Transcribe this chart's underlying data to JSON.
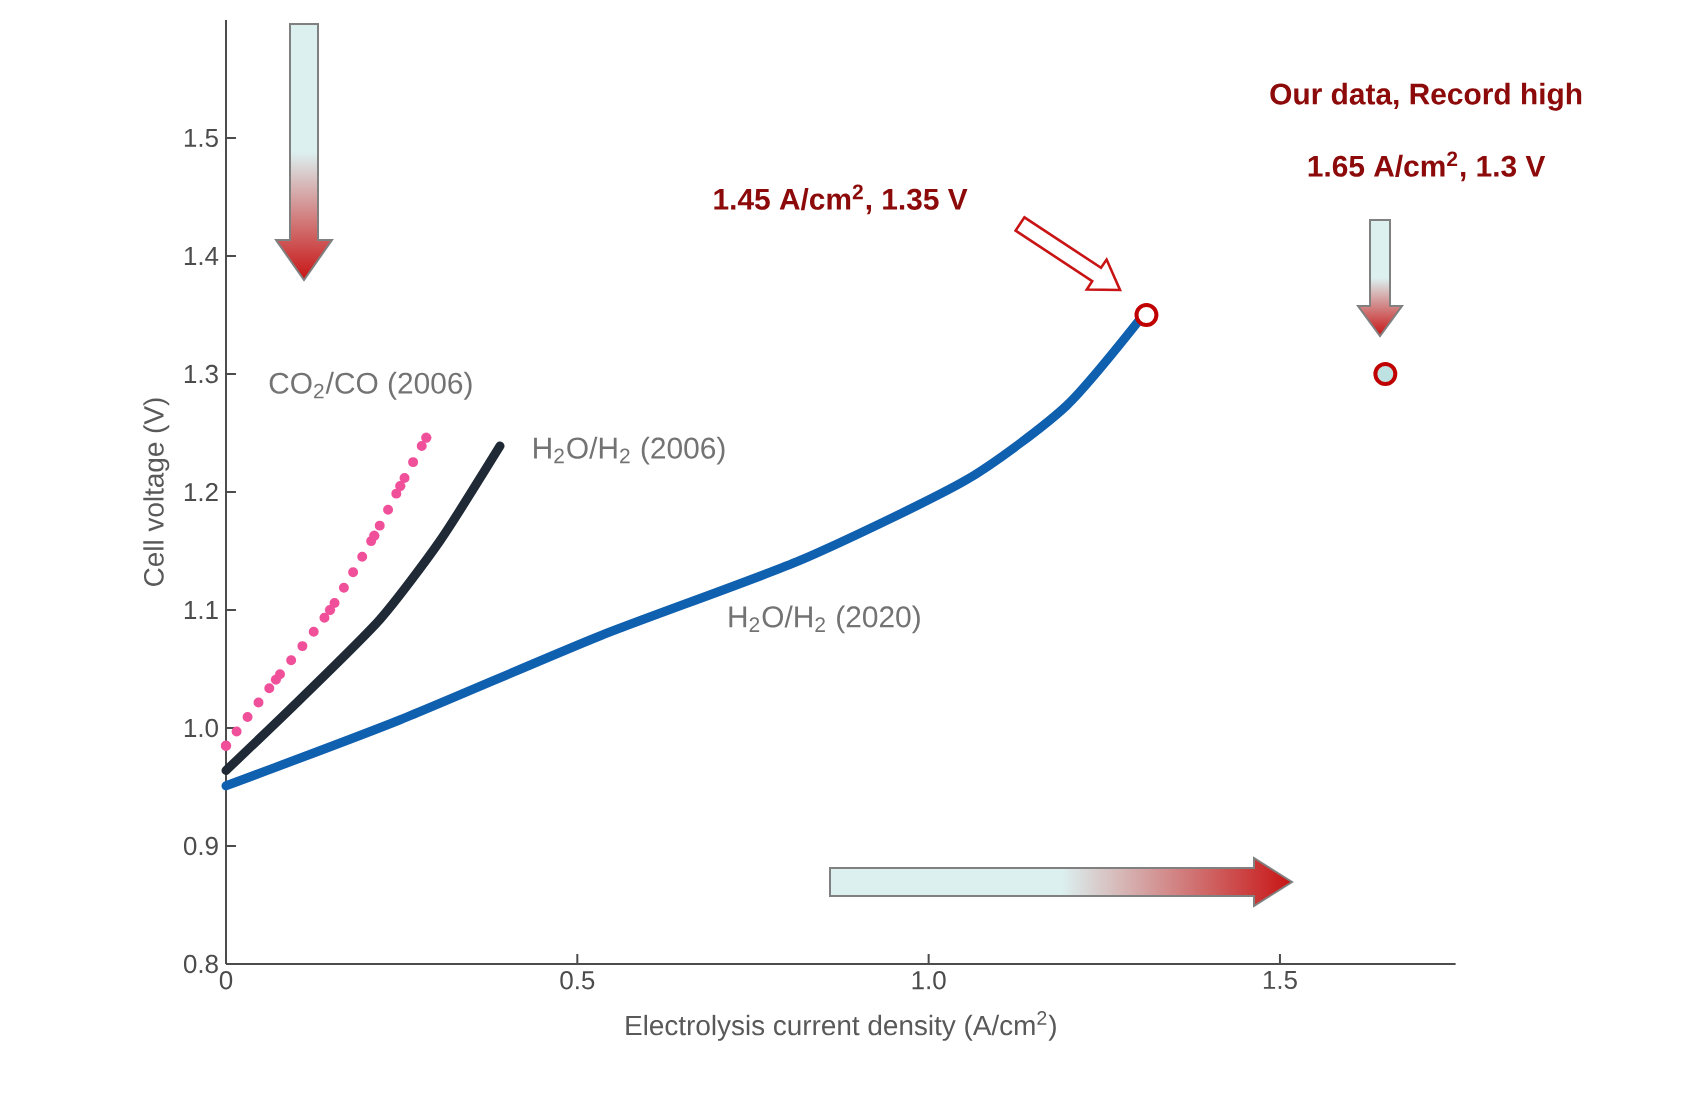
{
  "chart_data": {
    "type": "line",
    "xlabel": "Electrolysis current density (A/cm$^{2}$)",
    "ylabel": "Cell voltage (V)",
    "xlim": [
      0,
      1.75
    ],
    "ylim": [
      0.8,
      1.6
    ],
    "xticks": [
      0,
      0.5,
      {
        "value": 1.0,
        "label": "1.0"
      },
      1.5
    ],
    "yticks": [
      0.8,
      0.9,
      {
        "value": 1.0,
        "label": "1.0"
      },
      1.1,
      1.2,
      1.3,
      1.4,
      1.5
    ],
    "series": [
      {
        "name": "CO$_{2}$/CO (2006)",
        "color": "#f0509a",
        "line_style": "dotted",
        "marker": "circle",
        "x": [
          0,
          0.071,
          0.148,
          0.211,
          0.248,
          0.285
        ],
        "values": [
          0.985,
          1.041,
          1.1,
          1.163,
          1.205,
          1.246
        ]
      },
      {
        "name": "H$_{2}$O/H$_{2}$ (2006)",
        "color": "#1f2a36",
        "line_style": "solid",
        "x": [
          0,
          0.105,
          0.219,
          0.305,
          0.39
        ],
        "values": [
          0.964,
          1.024,
          1.092,
          1.159,
          1.239
        ]
      },
      {
        "name": "H$_{2}$O/H$_{2}$ (2020)",
        "color": "#1060b0",
        "line_style": "solid",
        "x": [
          0,
          0.248,
          0.532,
          0.817,
          1.053,
          1.196,
          1.307
        ],
        "values": [
          0.951,
          1.007,
          1.078,
          1.142,
          1.21,
          1.273,
          1.351
        ]
      },
      {
        "type": "scatter",
        "marker": "circle",
        "color": "#c00000",
        "x": [
          1.31
        ],
        "values": [
          1.35
        ]
      },
      {
        "type": "scatter",
        "marker": "circle",
        "color": "#c00000",
        "x": [
          1.65
        ],
        "values": [
          1.3
        ]
      }
    ],
    "annotations": [
      "1.45 A/cm$^{2}$, 1.35 V",
      "Our data, Record high",
      "1.65 A/cm$^{2}$, 1.3 V"
    ]
  }
}
